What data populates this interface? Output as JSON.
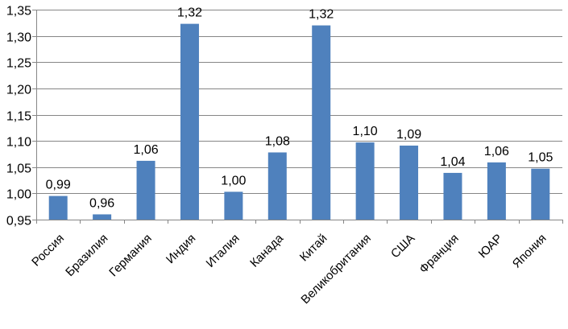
{
  "chart_data": {
    "type": "bar",
    "categories": [
      "Россия",
      "Бразилия",
      "Германия",
      "Индия",
      "Италия",
      "Канада",
      "Китай",
      "Великобритания",
      "США",
      "Франция",
      "ЮАР",
      "Япония"
    ],
    "values": [
      0.995,
      0.96,
      1.062,
      1.323,
      1.003,
      1.078,
      1.32,
      1.097,
      1.091,
      1.039,
      1.059,
      1.047
    ],
    "data_labels": [
      "0,99",
      "0,96",
      "1,06",
      "1,32",
      "1,00",
      "1,08",
      "1,32",
      "1,10",
      "1,09",
      "1,04",
      "1,06",
      "1,05"
    ],
    "ylim": [
      0.95,
      1.35
    ],
    "yticks": [
      0.95,
      1.0,
      1.05,
      1.1,
      1.15,
      1.2,
      1.25,
      1.3,
      1.35
    ],
    "ytick_labels": [
      "0,95",
      "1,00",
      "1,05",
      "1,10",
      "1,15",
      "1,20",
      "1,25",
      "1,30",
      "1,35"
    ],
    "grid": true,
    "legend": false,
    "bar_color": "#4F81BD",
    "grid_color": "#868686"
  }
}
